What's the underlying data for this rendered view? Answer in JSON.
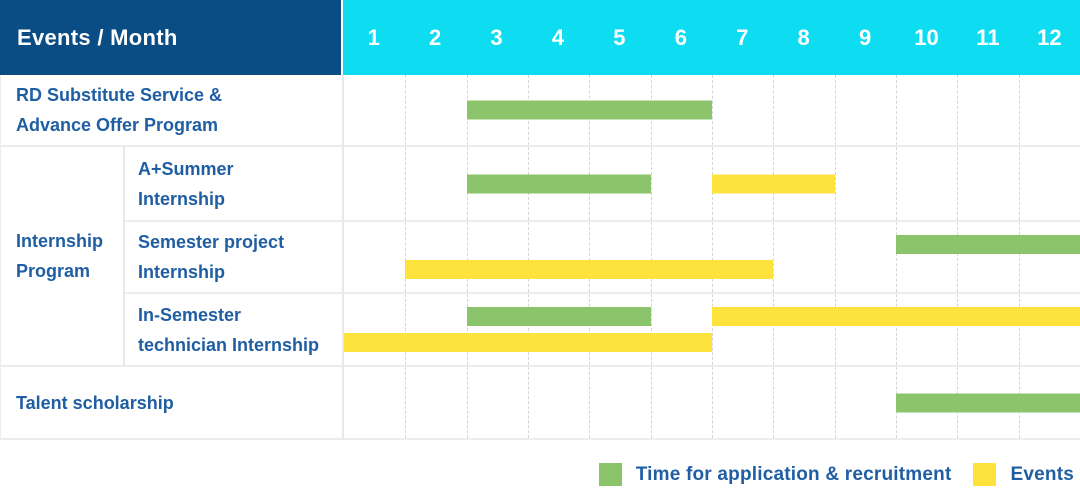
{
  "title": "Events / Month",
  "colors": {
    "header_navy": "#0A4C84",
    "header_cyan": "#0EDCF0",
    "bar_green": "#8BC46A",
    "bar_yellow": "#FFE33D",
    "text_blue": "#1F5EA3",
    "row_line": "#ECECEC",
    "col_line": "#E8E8E8",
    "dashed_line": "#D5D5D5"
  },
  "legend": {
    "items": [
      {
        "key": "application",
        "label": "Time for application & recruitment"
      },
      {
        "key": "event",
        "label": "Events"
      }
    ]
  },
  "chart_data": {
    "type": "gantt",
    "title": "Events / Month",
    "months": [
      "1",
      "2",
      "3",
      "4",
      "5",
      "6",
      "7",
      "8",
      "9",
      "10",
      "11",
      "12"
    ],
    "x_range": [
      1,
      12
    ],
    "grid": "dashed-vertical-month-lines",
    "legend_position": "bottom-right",
    "rows": [
      {
        "label": "RD Substitute Service &\nAdvance Offer Program",
        "group": null,
        "layout": "center",
        "bars": [
          {
            "kind": "application",
            "start_month": 3,
            "end_month": 6,
            "line": 0
          }
        ]
      },
      {
        "label": "A+Summer\nInternship",
        "group": "Internship\nProgram",
        "layout": "center",
        "bars": [
          {
            "kind": "application",
            "start_month": 3,
            "end_month": 5,
            "line": 0
          },
          {
            "kind": "event",
            "start_month": 7,
            "end_month": 8,
            "line": 0
          }
        ]
      },
      {
        "label": "Semester project\nInternship",
        "group": "Internship\nProgram",
        "layout": "two",
        "bars": [
          {
            "kind": "application",
            "start_month": 10,
            "end_month": 12,
            "line": 0
          },
          {
            "kind": "event",
            "start_month": 2,
            "end_month": 7,
            "line": 1
          }
        ]
      },
      {
        "label": "In-Semester\ntechnician Internship",
        "group": "Internship\nProgram",
        "layout": "two",
        "bars": [
          {
            "kind": "application",
            "start_month": 3,
            "end_month": 5,
            "line": 0
          },
          {
            "kind": "event",
            "start_month": 7,
            "end_month": 12,
            "line": 0
          },
          {
            "kind": "event",
            "start_month": 1,
            "end_month": 6,
            "line": 1
          }
        ]
      },
      {
        "label": "Talent scholarship",
        "group": null,
        "layout": "center",
        "bars": [
          {
            "kind": "application",
            "start_month": 10,
            "end_month": 12,
            "line": 0
          }
        ]
      }
    ]
  }
}
